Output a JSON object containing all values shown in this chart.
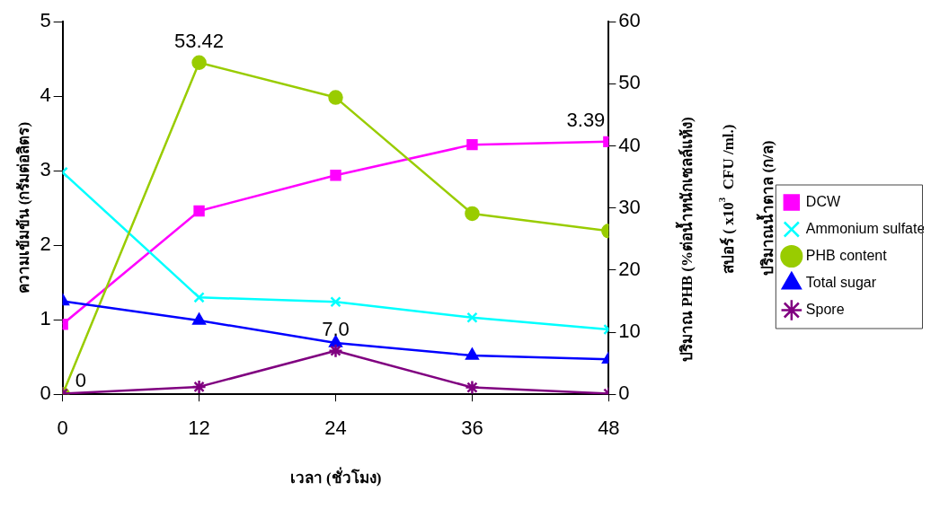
{
  "chart_data": {
    "type": "line",
    "x": [
      0,
      12,
      24,
      36,
      48
    ],
    "xlim": [
      0,
      48
    ],
    "xticks": [
      0,
      12,
      24,
      36,
      48
    ],
    "ylim": [
      0,
      5
    ],
    "yticks": [
      0,
      1,
      2,
      3,
      4,
      5
    ],
    "y2lim": [
      0,
      60
    ],
    "y2ticks": [
      0,
      10,
      20,
      30,
      40,
      50,
      60
    ],
    "xlabel": "เวลา (ชั่วโมง)",
    "ylabel": "ความเข้มข้น (กรัมต่อลิตร)",
    "y2label": "ปริมาณ PHB (%ต่อน้ำหนักเซลล์แห้ง)",
    "annotations": [
      "สปอร์ ( x10$^{3}$  CFU /ml.)",
      "ปริมาณน้ำตาล (ก/ล)"
    ],
    "grid": false,
    "legend": "right",
    "series": [
      {
        "name": "DCW",
        "color": "#ff00ff",
        "marker": "square",
        "values": [
          0.94,
          2.46,
          2.94,
          3.35,
          3.39
        ],
        "value_labels": [
          null,
          null,
          null,
          null,
          "3.39"
        ]
      },
      {
        "name": "Ammonium sulfate",
        "color": "#00ffff",
        "marker": "cross",
        "values": [
          2.98,
          1.3,
          1.24,
          1.03,
          0.87
        ]
      },
      {
        "name": "PHB content",
        "color": "#99cc00",
        "marker": "circle",
        "axis": "y2",
        "values": [
          0,
          53.42,
          47.8,
          29.1,
          26.3
        ],
        "value_labels": [
          "0",
          "53.42",
          null,
          null,
          null
        ]
      },
      {
        "name": "Total sugar",
        "color": "#0000ff",
        "marker": "triangle",
        "values": [
          1.25,
          0.99,
          0.69,
          0.52,
          0.47
        ]
      },
      {
        "name": "Spore",
        "color": "#800080",
        "marker": "cross",
        "axis": "y2",
        "values": [
          0.1,
          1.2,
          7.0,
          1.1,
          0.1
        ],
        "value_labels": [
          null,
          null,
          "7.0",
          null,
          null
        ]
      }
    ]
  }
}
